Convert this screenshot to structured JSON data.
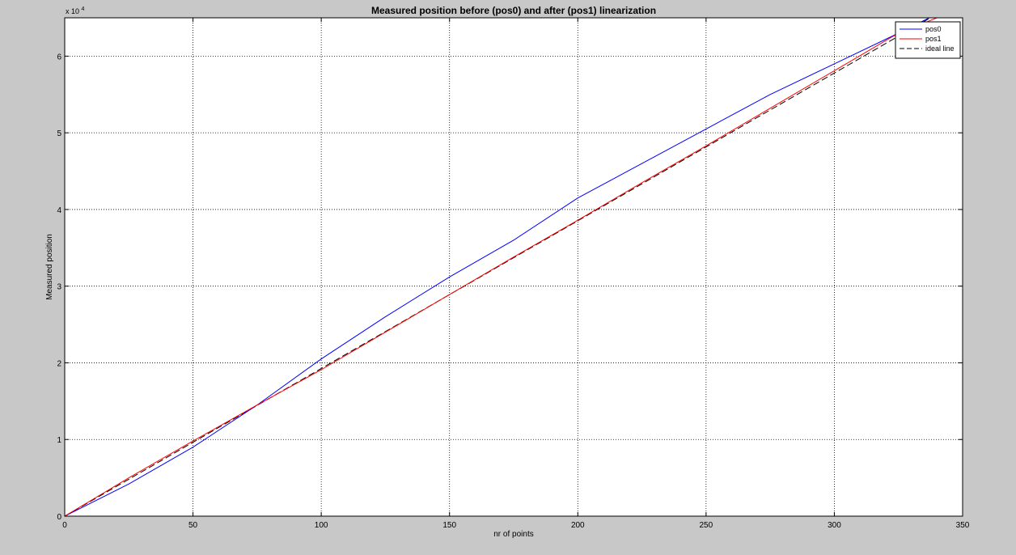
{
  "chart_data": {
    "type": "line",
    "title": "Measured position before (pos0) and after (pos1) linearization",
    "xlabel": "nr of points",
    "ylabel": "Measured position",
    "y_exponent_base": "x 10",
    "y_exponent_power": "4",
    "xlim": [
      0,
      350
    ],
    "ylim": [
      0,
      65000
    ],
    "xticks": [
      0,
      50,
      100,
      150,
      200,
      250,
      300,
      350
    ],
    "yticks": [
      0,
      10000,
      20000,
      30000,
      40000,
      50000,
      60000
    ],
    "ytick_labels": [
      "0",
      "1",
      "2",
      "3",
      "4",
      "5",
      "6"
    ],
    "grid": true,
    "legend_position": "top-right",
    "series": [
      {
        "name": "pos0",
        "color": "#0000ff",
        "dash": "solid",
        "x": [
          0,
          25,
          50,
          75,
          100,
          125,
          150,
          175,
          200,
          225,
          250,
          275,
          300,
          325,
          340
        ],
        "y": [
          0,
          4200,
          9000,
          14500,
          20500,
          26000,
          31200,
          36000,
          41500,
          46000,
          50500,
          55000,
          59000,
          63000,
          65500
        ]
      },
      {
        "name": "pos1",
        "color": "#ff0000",
        "dash": "solid",
        "x": [
          0,
          25,
          50,
          75,
          100,
          125,
          150,
          175,
          200,
          225,
          250,
          275,
          300,
          325,
          340
        ],
        "y": [
          0,
          5000,
          9800,
          14500,
          19100,
          24000,
          28900,
          33800,
          38600,
          43500,
          48300,
          53200,
          58100,
          63000,
          65000
        ]
      },
      {
        "name": "ideal line",
        "color": "#000000",
        "dash": "dashed",
        "x": [
          0,
          340
        ],
        "y": [
          0,
          65500
        ]
      }
    ]
  }
}
